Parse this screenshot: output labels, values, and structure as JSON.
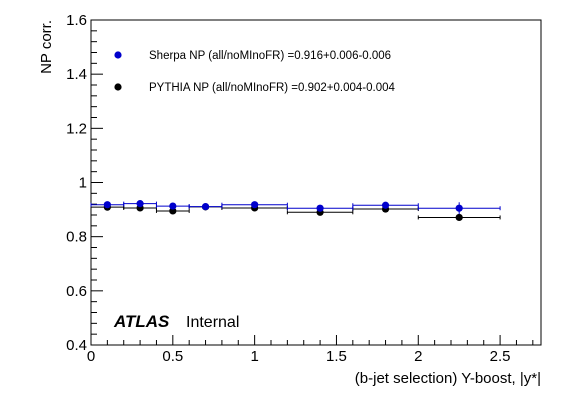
{
  "chart_data": {
    "type": "scatter",
    "xlabel": "(b-jet selection) Y-boost, |y*|",
    "ylabel": "NP corr.",
    "xlim": [
      0,
      2.75
    ],
    "ylim": [
      0.4,
      1.6
    ],
    "x_ticks": [
      0,
      0.5,
      1,
      1.5,
      2,
      2.5
    ],
    "x_tick_labels": [
      "0",
      "0.5",
      "1",
      "1.5",
      "2",
      "2.5"
    ],
    "y_ticks": [
      0.4,
      0.6,
      0.8,
      1.0,
      1.2,
      1.4,
      1.6
    ],
    "y_tick_labels": [
      "0.4",
      "0.6",
      "0.8",
      "1",
      "1.2",
      "1.4",
      "1.6"
    ],
    "grid": false,
    "legend_position": "top-left",
    "series": [
      {
        "name": "Sherpa NP (all/noMInoFR) =0.916+0.006-0.006",
        "color": "#0000cc",
        "bins": [
          [
            0,
            0.2
          ],
          [
            0.2,
            0.4
          ],
          [
            0.4,
            0.6
          ],
          [
            0.6,
            0.8
          ],
          [
            0.8,
            1.2
          ],
          [
            1.2,
            1.6
          ],
          [
            1.6,
            2.0
          ],
          [
            2.0,
            2.5
          ]
        ],
        "x": [
          0.1,
          0.3,
          0.5,
          0.7,
          1.0,
          1.4,
          1.8,
          2.25
        ],
        "y": [
          0.918,
          0.922,
          0.913,
          0.911,
          0.918,
          0.905,
          0.916,
          0.905
        ],
        "yerr": [
          0.004,
          0.004,
          0.004,
          0.004,
          0.004,
          0.004,
          0.004,
          0.022
        ]
      },
      {
        "name": "PYTHIA NP (all/noMInoFR) =0.902+0.004-0.004",
        "color": "#000000",
        "bins": [
          [
            0,
            0.2
          ],
          [
            0.2,
            0.4
          ],
          [
            0.4,
            0.6
          ],
          [
            0.6,
            0.8
          ],
          [
            0.8,
            1.2
          ],
          [
            1.2,
            1.6
          ],
          [
            1.6,
            2.0
          ],
          [
            2.0,
            2.5
          ]
        ],
        "x": [
          0.1,
          0.3,
          0.5,
          0.7,
          1.0,
          1.4,
          1.8,
          2.25
        ],
        "y": [
          0.909,
          0.906,
          0.895,
          0.91,
          0.906,
          0.89,
          0.902,
          0.871
        ],
        "yerr": [
          0.003,
          0.003,
          0.003,
          0.003,
          0.003,
          0.003,
          0.003,
          0.005
        ]
      }
    ]
  },
  "atlas_label": "ATLAS",
  "atlas_status": "Internal"
}
